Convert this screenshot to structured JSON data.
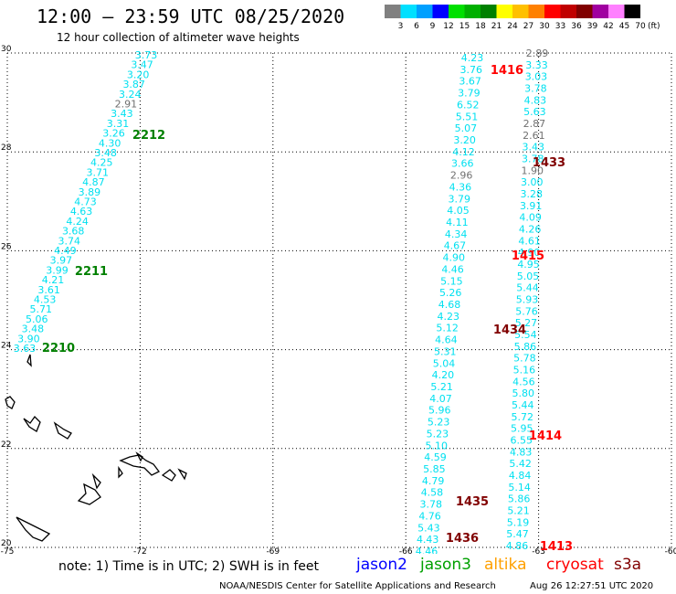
{
  "title": "12:00 – 23:59 UTC 08/25/2020",
  "subtitle": "12 hour collection of altimeter wave heights",
  "colorbar": {
    "ticks": [
      "3",
      "6",
      "9",
      "12",
      "15",
      "18",
      "21",
      "24",
      "27",
      "30",
      "33",
      "36",
      "39",
      "42",
      "45",
      "70"
    ],
    "unit": "(ft)",
    "colors": [
      "#808080",
      "#00e0ff",
      "#00a0ff",
      "#0000ff",
      "#00e000",
      "#00b000",
      "#008000",
      "#ffff00",
      "#ffc000",
      "#ff8000",
      "#ff0000",
      "#c00000",
      "#800000",
      "#a000a0",
      "#ff80ff",
      "#000000"
    ]
  },
  "axes": {
    "lat_labels": [
      "30",
      "28",
      "26",
      "24",
      "22",
      "20"
    ],
    "lon_labels": [
      "-75",
      "-72",
      "-69",
      "-66",
      "-63",
      "-60"
    ]
  },
  "passes": [
    {
      "label": "2212",
      "color": "#008000"
    },
    {
      "label": "2211",
      "color": "#008000"
    },
    {
      "label": "2210",
      "color": "#008000"
    },
    {
      "label": "1416",
      "color": "#ff0000"
    },
    {
      "label": "1433",
      "color": "#800000"
    },
    {
      "label": "1415",
      "color": "#ff0000"
    },
    {
      "label": "1434",
      "color": "#800000"
    },
    {
      "label": "1414",
      "color": "#ff0000"
    },
    {
      "label": "1435",
      "color": "#800000"
    },
    {
      "label": "1436",
      "color": "#800000"
    },
    {
      "label": "1413",
      "color": "#ff0000"
    }
  ],
  "tracks": {
    "jason3": [
      "3.73",
      "3.47",
      "3.20",
      "3.87",
      "3.24",
      "2.91",
      "3.43",
      "3.31",
      "3.26",
      "4.30",
      "3.48",
      "4.25",
      "3.71",
      "4.87",
      "3.89",
      "4.73",
      "4.63",
      "4.24",
      "3.68",
      "3.74",
      "4.49",
      "3.97",
      "3.99",
      "4.21",
      "3.61",
      "4.53",
      "5.71",
      "5.06",
      "3.48",
      "3.90",
      "3.63"
    ],
    "cryosat_left": [
      "4.23",
      "3.76",
      "3.67",
      "3.79",
      "6.52",
      "5.51",
      "5.07",
      "3.20",
      "4.12",
      "3.66",
      "2.96",
      "4.36",
      "3.79",
      "4.05",
      "4.11",
      "4.34",
      "4.67",
      "4.90",
      "4.46",
      "5.15",
      "5.26",
      "4.68",
      "4.23",
      "5.12",
      "4.64",
      "5.31",
      "5.04",
      "4.20",
      "5.21",
      "4.07",
      "5.96",
      "5.23",
      "5.23",
      "5.10",
      "4.59",
      "5.85",
      "4.79",
      "4.58",
      "3.78",
      "4.76",
      "5.43",
      "4.43",
      "4.46"
    ],
    "cryosat_right": [
      "2.89",
      "3.33",
      "3.03",
      "3.78",
      "4.83",
      "5.63",
      "2.87",
      "2.61",
      "3.43",
      "3.78",
      "1.90",
      "3.00",
      "3.28",
      "3.91",
      "4.09",
      "4.26",
      "4.61",
      "4.90",
      "4.95",
      "5.05",
      "5.44",
      "5.93",
      "5.76",
      "5.27",
      "5.54",
      "5.86",
      "5.78",
      "5.16",
      "4.56",
      "5.80",
      "5.44",
      "5.72",
      "5.95",
      "6.55",
      "4.83",
      "5.42",
      "4.84",
      "5.14",
      "5.86",
      "5.21",
      "5.19",
      "5.47",
      "4.86"
    ]
  },
  "footer": {
    "note": "note:  1) Time is in UTC; 2) SWH is in feet",
    "satellites": [
      {
        "name": "jason2",
        "color": "#0000ff"
      },
      {
        "name": "jason3",
        "color": "#00a000"
      },
      {
        "name": "altika",
        "color": "#ffa000"
      },
      {
        "name": "cryosat",
        "color": "#ff0000"
      },
      {
        "name": "s3a",
        "color": "#800000"
      }
    ],
    "credit": "NOAA/NESDIS Center for Satellite Applications and Research",
    "timestamp": "Aug 26 12:27:51 UTC 2020"
  }
}
